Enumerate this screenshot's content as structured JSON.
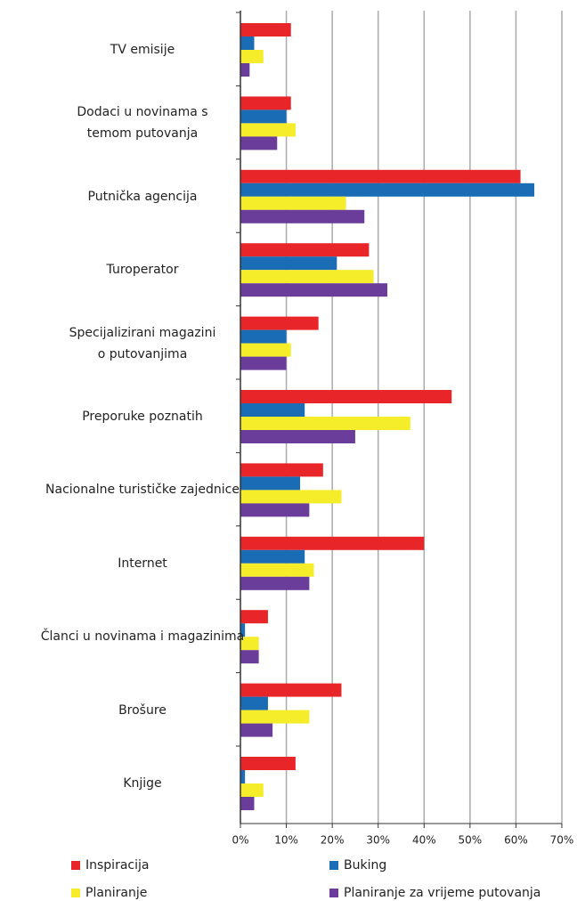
{
  "chart_data": {
    "type": "bar",
    "orientation": "horizontal",
    "categories": [
      "TV emisije",
      "Dodaci u novinama s temom putovanja",
      "Putnička agencija",
      "Turoperator",
      "Specijalizirani magazini o putovanjima",
      "Preporuke poznatih",
      "Nacionalne turističke zajednice",
      "Internet",
      "Članci u novinama i magazinima",
      "Brošure",
      "Knjige"
    ],
    "series": [
      {
        "name": "Inspiracija",
        "color": "#e8262a",
        "values": [
          11,
          11,
          61,
          28,
          17,
          46,
          18,
          40,
          6,
          22,
          12
        ]
      },
      {
        "name": "Buking",
        "color": "#1a6db5",
        "values": [
          3,
          10,
          64,
          21,
          10,
          14,
          13,
          14,
          1,
          6,
          1
        ]
      },
      {
        "name": "Planiranje",
        "color": "#f5ec2a",
        "values": [
          5,
          12,
          23,
          29,
          11,
          37,
          22,
          16,
          4,
          15,
          5
        ]
      },
      {
        "name": "Planiranje za vrijeme putovanja",
        "color": "#6a3d9a",
        "values": [
          2,
          8,
          27,
          32,
          10,
          25,
          15,
          15,
          4,
          7,
          3
        ]
      }
    ],
    "xlim": [
      0,
      70
    ],
    "xticks": [
      {
        "value": 0,
        "label": "0%"
      },
      {
        "value": 10,
        "label": "10%"
      },
      {
        "value": 20,
        "label": "20%"
      },
      {
        "value": 30,
        "label": "30%"
      },
      {
        "value": 40,
        "label": "40%"
      },
      {
        "value": 50,
        "label": "50%"
      },
      {
        "value": 60,
        "label": "60%"
      },
      {
        "value": 70,
        "label": "70%"
      }
    ],
    "grid": true
  }
}
